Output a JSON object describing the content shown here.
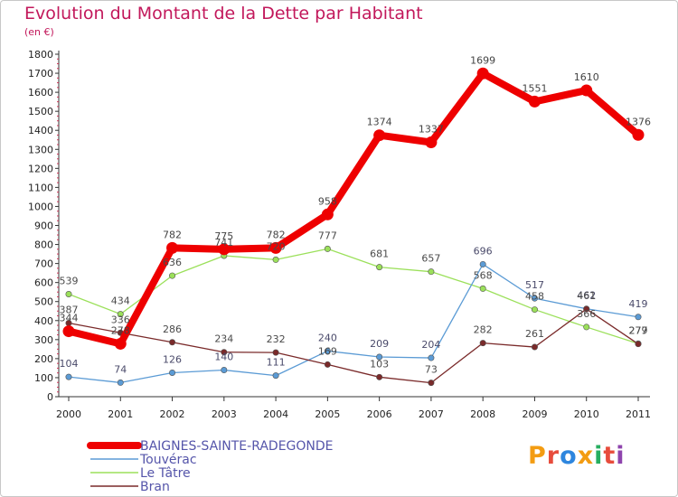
{
  "title": "Evolution du Montant de la Dette par Habitant",
  "subtitle": "(en €)",
  "logo": {
    "text": "Proxiti",
    "colors": [
      "#f39c12",
      "#e74c3c",
      "#2e86de",
      "#f39c12",
      "#27ae60",
      "#e74c3c",
      "#8e44ad"
    ]
  },
  "chart_data": {
    "type": "line",
    "x": [
      "2000",
      "2001",
      "2002",
      "2003",
      "2004",
      "2005",
      "2006",
      "2007",
      "2008",
      "2009",
      "2010",
      "2011"
    ],
    "ylim": [
      0,
      1800
    ],
    "yticks": [
      0,
      100,
      200,
      300,
      400,
      500,
      600,
      700,
      800,
      900,
      1000,
      1100,
      1200,
      1300,
      1400,
      1500,
      1600,
      1700,
      1800
    ],
    "grid": false,
    "legend_position": "bottom-left",
    "series": [
      {
        "name": "BAIGNES-SAINTE-RADEGONDE",
        "color": "#ee0000",
        "width": 8,
        "label_color": "#444444",
        "values": [
          344,
          278,
          782,
          775,
          782,
          958,
          1374,
          1337,
          1699,
          1551,
          1610,
          1376
        ]
      },
      {
        "name": "Touvérac",
        "color": "#5b9bd5",
        "width": 1.3,
        "label_color": "#4a4a6a",
        "values": [
          104,
          74,
          126,
          140,
          111,
          240,
          209,
          204,
          696,
          517,
          462,
          419
        ]
      },
      {
        "name": "Le Tâtre",
        "color": "#9be05a",
        "width": 1.3,
        "label_color": "#4a4a4a",
        "values": [
          539,
          434,
          636,
          741,
          720,
          777,
          681,
          657,
          568,
          458,
          366,
          279
        ]
      },
      {
        "name": "Bran",
        "color": "#7a2a2a",
        "width": 1.3,
        "label_color": "#4a4a4a",
        "values": [
          387,
          336,
          286,
          234,
          232,
          169,
          103,
          73,
          282,
          261,
          461,
          277
        ]
      }
    ]
  }
}
